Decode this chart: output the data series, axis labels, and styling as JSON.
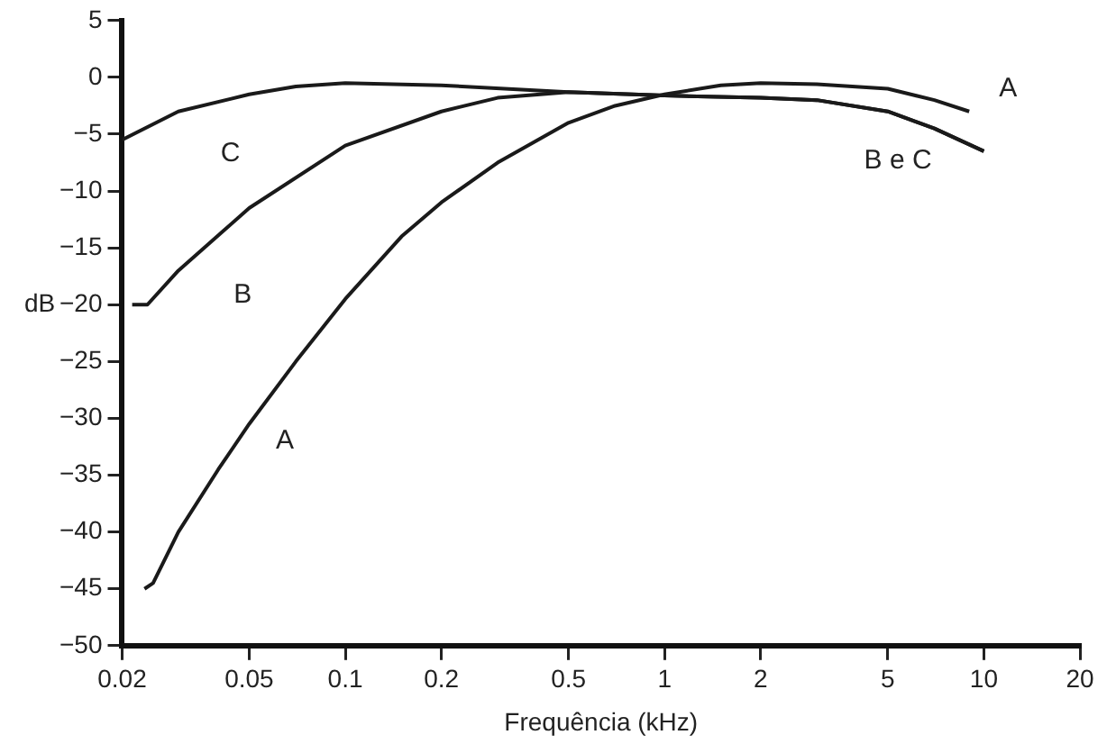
{
  "chart_data": {
    "type": "line",
    "xlabel": "Frequência (kHz)",
    "ylabel": "dB",
    "log": "x",
    "grid": false,
    "legend": false,
    "marker": "none",
    "line_style": "solid",
    "xlim": [
      0.02,
      20
    ],
    "xticks": [
      0.02,
      0.05,
      0.1,
      0.2,
      0.5,
      1,
      2,
      5,
      10,
      20
    ],
    "ylim": [
      -50,
      5
    ],
    "yticks": [
      {
        "value": -50,
        "label": "−50"
      },
      {
        "value": -45,
        "label": "−45"
      },
      {
        "value": -40,
        "label": "−40"
      },
      {
        "value": -35,
        "label": "−35"
      },
      {
        "value": -30,
        "label": "−30"
      },
      {
        "value": -25,
        "label": "−25"
      },
      {
        "value": -20,
        "label": "−20"
      },
      {
        "value": -15,
        "label": "−15"
      },
      {
        "value": -10,
        "label": "−10"
      },
      {
        "value": -5,
        "label": "−5"
      },
      0,
      5
    ],
    "series": [
      {
        "color": "#1a1a1a",
        "x": [
          0.0235,
          0.025,
          0.03,
          0.04,
          0.05,
          0.07,
          0.1,
          0.15,
          0.2,
          0.3,
          0.5,
          0.7,
          1,
          1.5,
          2,
          3,
          5,
          7,
          9
        ],
        "values": [
          -45,
          -44.5,
          -40,
          -34.5,
          -30.5,
          -25,
          -19.5,
          -14,
          -11,
          -7.5,
          -4,
          -2.5,
          -1.5,
          -0.7,
          -0.5,
          -0.6,
          -1,
          -2,
          -3
        ]
      },
      {
        "color": "#1a1a1a",
        "x": [
          0.0215,
          0.024,
          0.03,
          0.05,
          0.1,
          0.2,
          0.3,
          0.5,
          1,
          2,
          3,
          5,
          7,
          10
        ],
        "values": [
          -20,
          -20,
          -17,
          -11.5,
          -6,
          -3,
          -1.8,
          -1.3,
          -1.6,
          -1.8,
          -2,
          -3,
          -4.5,
          -6.5
        ]
      },
      {
        "color": "#1a1a1a",
        "x": [
          0.02,
          0.03,
          0.05,
          0.07,
          0.1,
          0.2,
          0.5,
          1,
          2,
          3,
          5,
          7,
          10
        ],
        "values": [
          -5.5,
          -3,
          -1.5,
          -0.8,
          -0.5,
          -0.7,
          -1.3,
          -1.6,
          -1.8,
          -2,
          -3,
          -4.5,
          -6.5
        ]
      }
    ],
    "annotations": [
      "C",
      "B",
      "A",
      "A",
      "B e C"
    ]
  }
}
